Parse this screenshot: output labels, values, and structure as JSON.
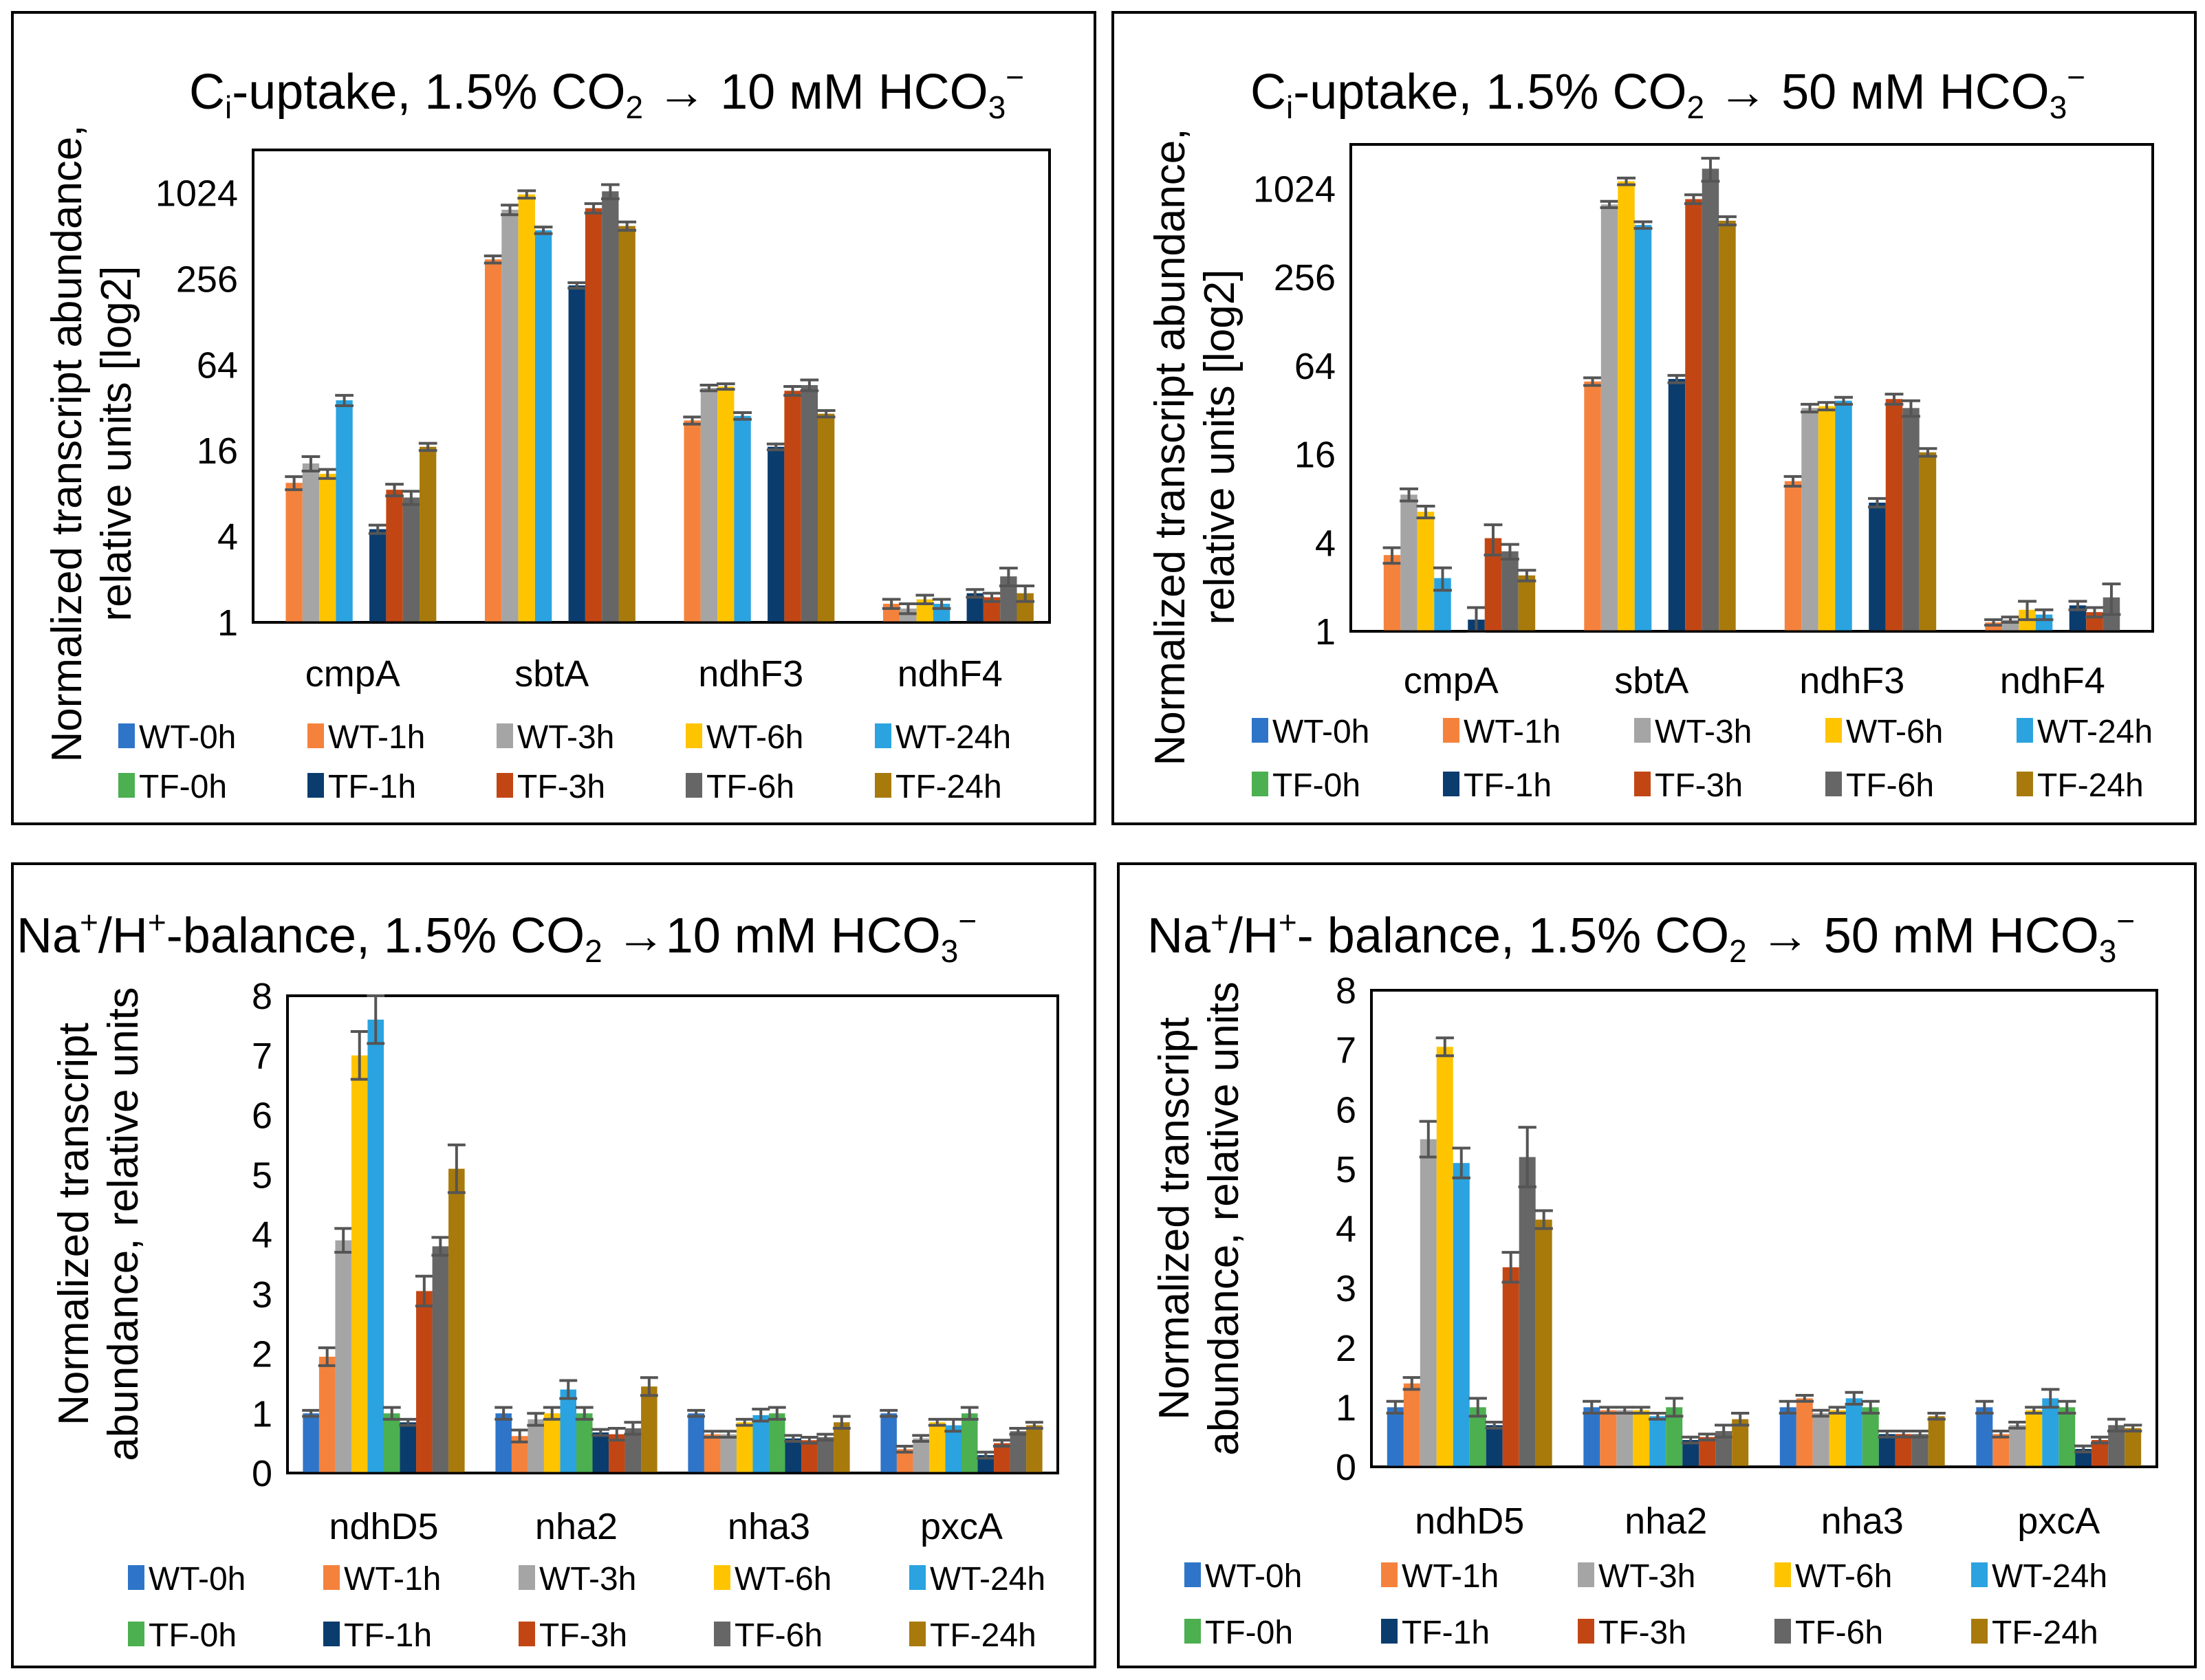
{
  "legend": [
    "WT-0h",
    "WT-1h",
    "WT-3h",
    "WT-6h",
    "WT-24h",
    "TF-0h",
    "TF-1h",
    "TF-3h",
    "TF-6h",
    "TF-24h"
  ],
  "colors": [
    "#2E75C9",
    "#F5823C",
    "#A5A5A5",
    "#FFC400",
    "#2AA3E0",
    "#4CAF50",
    "#0B3C6E",
    "#C24614",
    "#666666",
    "#A87A0C"
  ],
  "chart_data": [
    {
      "type": "bar",
      "scale": "log2",
      "title": "Ci-uptake, 1.5% CO2 → 10 мМ HCO3−",
      "title_parts": {
        "a": "C",
        "a_sub": "i",
        "b": "-uptake, 1.5% CO",
        "b_sub": "2",
        "c": " → 10 мМ HCO",
        "c_sub": "3",
        "c_sup": "−"
      },
      "ylabel": [
        "Normalized transcript abundance,",
        "relative units [log2]"
      ],
      "yticks": [
        1,
        4,
        16,
        64,
        256,
        1024
      ],
      "ytick_labels": [
        "1",
        "4",
        "16",
        "64",
        "256",
        "1024"
      ],
      "ylim": [
        1,
        2048
      ],
      "categories": [
        "cmpA",
        "sbtA",
        "ndhF3",
        "ndhF4"
      ],
      "series": [
        {
          "name": "WT-0h",
          "values": [
            1,
            1,
            1,
            1
          ]
        },
        {
          "name": "WT-1h",
          "values": [
            9.5,
            350,
            26,
            1.35
          ]
        },
        {
          "name": "WT-3h",
          "values": [
            13,
            780,
            44,
            1.25
          ]
        },
        {
          "name": "WT-6h",
          "values": [
            11,
            1000,
            45,
            1.45
          ]
        },
        {
          "name": "WT-24h",
          "values": [
            36,
            560,
            28,
            1.35
          ]
        },
        {
          "name": "TF-0h",
          "values": [
            1,
            1,
            1,
            1
          ]
        },
        {
          "name": "TF-1h",
          "values": [
            4.5,
            230,
            17,
            1.6
          ]
        },
        {
          "name": "TF-3h",
          "values": [
            8.5,
            800,
            42,
            1.5
          ]
        },
        {
          "name": "TF-6h",
          "values": [
            7.5,
            1050,
            46,
            2.1
          ]
        },
        {
          "name": "TF-24h",
          "values": [
            17,
            600,
            29,
            1.6
          ]
        }
      ],
      "errors": [
        [
          0,
          0,
          0,
          0
        ],
        [
          1,
          20,
          1.5,
          0.1
        ],
        [
          1.5,
          60,
          2,
          0.1
        ],
        [
          0.8,
          60,
          2,
          0.1
        ],
        [
          3,
          30,
          1.5,
          0.1
        ],
        [
          0,
          0,
          0,
          0
        ],
        [
          0.3,
          10,
          0.8,
          0.1
        ],
        [
          0.8,
          60,
          3,
          0.1
        ],
        [
          0.8,
          120,
          4,
          0.3
        ],
        [
          1,
          40,
          1.5,
          0.2
        ]
      ]
    },
    {
      "type": "bar",
      "scale": "log2",
      "title": "Ci-uptake, 1.5% CO2 → 50 мМ HCO3−",
      "title_parts": {
        "a": "C",
        "a_sub": "i",
        "b": "-uptake, 1.5% CO",
        "b_sub": "2",
        "c": " → 50 мМ HCO",
        "c_sub": "3",
        "c_sup": "−"
      },
      "ylabel": [
        "Normalized transcript abundance,",
        "relative units [log2]"
      ],
      "yticks": [
        1,
        4,
        16,
        64,
        256,
        1024
      ],
      "ytick_labels": [
        "1",
        "4",
        "16",
        "64",
        "256",
        "1024"
      ],
      "ylim": [
        1,
        2048
      ],
      "categories": [
        "cmpA",
        "sbtA",
        "ndhF3",
        "ndhF4"
      ],
      "series": [
        {
          "name": "WT-0h",
          "values": [
            1,
            1,
            1,
            1
          ]
        },
        {
          "name": "WT-1h",
          "values": [
            3.3,
            50,
            10.5,
            1.15
          ]
        },
        {
          "name": "WT-3h",
          "values": [
            8.5,
            800,
            33,
            1.2
          ]
        },
        {
          "name": "WT-6h",
          "values": [
            6.5,
            1150,
            34,
            1.4
          ]
        },
        {
          "name": "WT-24h",
          "values": [
            2.3,
            580,
            37,
            1.3
          ]
        },
        {
          "name": "TF-0h",
          "values": [
            1,
            1,
            1,
            1
          ]
        },
        {
          "name": "TF-1h",
          "values": [
            1.2,
            52,
            7.5,
            1.5
          ]
        },
        {
          "name": "TF-3h",
          "values": [
            4.3,
            870,
            38,
            1.35
          ]
        },
        {
          "name": "TF-6h",
          "values": [
            3.5,
            1400,
            33,
            1.7
          ]
        },
        {
          "name": "TF-24h",
          "values": [
            2.4,
            620,
            16.5,
            0.95
          ]
        }
      ],
      "errors": [
        [
          0,
          0,
          0,
          0
        ],
        [
          0.4,
          3,
          0.8,
          0.05
        ],
        [
          0.8,
          40,
          2,
          0.05
        ],
        [
          0.6,
          60,
          2,
          0.2
        ],
        [
          0.4,
          30,
          2,
          0.1
        ],
        [
          0,
          0,
          0,
          0
        ],
        [
          0.25,
          3,
          0.5,
          0.1
        ],
        [
          1,
          60,
          3,
          0.1
        ],
        [
          0.4,
          250,
          4,
          0.4
        ],
        [
          0.2,
          40,
          1,
          0.05
        ]
      ]
    },
    {
      "type": "bar",
      "scale": "linear",
      "title": "Na+/H+-balance, 1.5% CO2 →10 mM HCO3−",
      "title_parts": {
        "a": "Na",
        "a_sup": "+",
        "b": "/H",
        "b_sup": "+",
        "c": "-balance, 1.5% CO",
        "c_sub": "2",
        "d": " →10 mM HCO",
        "d_sub": "3",
        "d_sup": "−"
      },
      "ylabel": [
        "Normalized transcript",
        "abundance, relative units"
      ],
      "yticks": [
        0,
        1,
        2,
        3,
        4,
        5,
        6,
        7,
        8
      ],
      "ytick_labels": [
        "0",
        "1",
        "2",
        "3",
        "4",
        "5",
        "6",
        "7",
        "8"
      ],
      "ylim": [
        0,
        8
      ],
      "categories": [
        "ndhD5",
        "nha2",
        "nha3",
        "pxcA"
      ],
      "series": [
        {
          "name": "WT-0h",
          "values": [
            1,
            1,
            1,
            1
          ]
        },
        {
          "name": "WT-1h",
          "values": [
            1.95,
            0.62,
            0.65,
            0.4
          ]
        },
        {
          "name": "WT-3h",
          "values": [
            3.9,
            0.9,
            0.65,
            0.58
          ]
        },
        {
          "name": "WT-6h",
          "values": [
            7.0,
            1.0,
            0.85,
            0.85
          ]
        },
        {
          "name": "WT-24h",
          "values": [
            7.6,
            1.4,
            0.97,
            0.8
          ]
        },
        {
          "name": "TF-0h",
          "values": [
            1.0,
            1.0,
            1.0,
            1.0
          ]
        },
        {
          "name": "TF-1h",
          "values": [
            0.85,
            0.68,
            0.58,
            0.3
          ]
        },
        {
          "name": "TF-3h",
          "values": [
            3.05,
            0.65,
            0.55,
            0.5
          ]
        },
        {
          "name": "TF-6h",
          "values": [
            3.8,
            0.75,
            0.6,
            0.7
          ]
        },
        {
          "name": "TF-24h",
          "values": [
            5.1,
            1.45,
            0.85,
            0.8
          ]
        }
      ],
      "errors": [
        [
          0.05,
          0.1,
          0.05,
          0.05
        ],
        [
          0.15,
          0.1,
          0.05,
          0.05
        ],
        [
          0.2,
          0.1,
          0.05,
          0.05
        ],
        [
          0.4,
          0.1,
          0.05,
          0.05
        ],
        [
          0.4,
          0.15,
          0.1,
          0.1
        ],
        [
          0.1,
          0.1,
          0.1,
          0.1
        ],
        [
          0.05,
          0.05,
          0.05,
          0.05
        ],
        [
          0.25,
          0.1,
          0.05,
          0.05
        ],
        [
          0.15,
          0.1,
          0.05,
          0.05
        ],
        [
          0.4,
          0.15,
          0.1,
          0.05
        ]
      ]
    },
    {
      "type": "bar",
      "scale": "linear",
      "title": "Na+/H+- balance, 1.5% CO2 → 50 mM HCO3−",
      "title_parts": {
        "a": "Na",
        "a_sup": "+",
        "b": "/H",
        "b_sup": "+",
        "c": "- balance, 1.5% CO",
        "c_sub": "2",
        "d": " → 50 mM HCO",
        "d_sub": "3",
        "d_sup": "−"
      },
      "ylabel": [
        "Normalized transcript",
        "abundance, relative units"
      ],
      "yticks": [
        0,
        1,
        2,
        3,
        4,
        5,
        6,
        7,
        8
      ],
      "ytick_labels": [
        "0",
        "1",
        "2",
        "3",
        "4",
        "5",
        "6",
        "7",
        "8"
      ],
      "ylim": [
        0,
        8
      ],
      "categories": [
        "ndhD5",
        "nha2",
        "nha3",
        "pxcA"
      ],
      "series": [
        {
          "name": "WT-0h",
          "values": [
            1,
            1,
            1,
            1
          ]
        },
        {
          "name": "WT-1h",
          "values": [
            1.4,
            0.95,
            1.15,
            0.55
          ]
        },
        {
          "name": "WT-3h",
          "values": [
            5.5,
            0.95,
            0.9,
            0.7
          ]
        },
        {
          "name": "WT-6h",
          "values": [
            7.05,
            0.95,
            0.95,
            0.95
          ]
        },
        {
          "name": "WT-24h",
          "values": [
            5.1,
            0.85,
            1.15,
            1.15
          ]
        },
        {
          "name": "TF-0h",
          "values": [
            1.0,
            1.0,
            1.0,
            1.0
          ]
        },
        {
          "name": "TF-1h",
          "values": [
            0.7,
            0.45,
            0.55,
            0.3
          ]
        },
        {
          "name": "TF-3h",
          "values": [
            3.35,
            0.5,
            0.55,
            0.45
          ]
        },
        {
          "name": "TF-6h",
          "values": [
            5.2,
            0.6,
            0.55,
            0.7
          ]
        },
        {
          "name": "TF-24h",
          "values": [
            4.15,
            0.8,
            0.85,
            0.65
          ]
        }
      ],
      "errors": [
        [
          0.1,
          0.1,
          0.1,
          0.1
        ],
        [
          0.1,
          0.05,
          0.05,
          0.05
        ],
        [
          0.3,
          0.05,
          0.05,
          0.05
        ],
        [
          0.15,
          0.05,
          0.05,
          0.05
        ],
        [
          0.25,
          0.05,
          0.1,
          0.15
        ],
        [
          0.15,
          0.15,
          0.1,
          0.1
        ],
        [
          0.05,
          0.05,
          0.05,
          0.05
        ],
        [
          0.25,
          0.05,
          0.05,
          0.05
        ],
        [
          0.5,
          0.1,
          0.05,
          0.1
        ],
        [
          0.15,
          0.1,
          0.05,
          0.05
        ]
      ]
    }
  ]
}
